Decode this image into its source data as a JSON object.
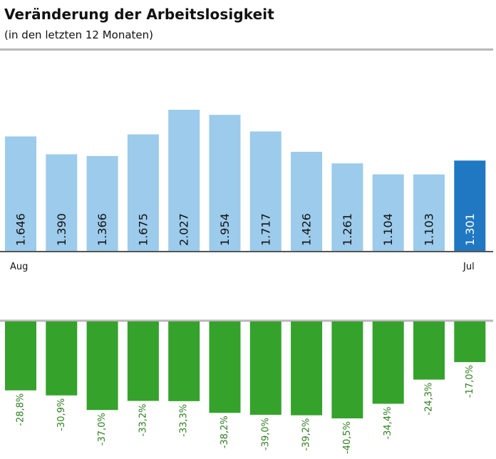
{
  "header": {
    "title": "Veränderung der Arbeitslosigkeit",
    "subtitle": "(in den letzten 12 Monaten)"
  },
  "colors": {
    "bar": "#9ccbeb",
    "bar_highlight": "#1f78c1",
    "pct_bar": "#35a22c",
    "pct_text": "#2e7d1f",
    "baseline": "#555555",
    "rule": "#b8b8b8"
  },
  "chart_data": [
    {
      "type": "bar",
      "categories": [
        "Aug",
        "",
        "",
        "",
        "",
        "",
        "",
        "",
        "",
        "",
        "",
        "Jul"
      ],
      "values": [
        1646,
        1390,
        1366,
        1675,
        2027,
        1954,
        1717,
        1426,
        1261,
        1104,
        1103,
        1301
      ],
      "value_labels": [
        "1.646",
        "1.390",
        "1.366",
        "1.675",
        "2.027",
        "1.954",
        "1.717",
        "1.426",
        "1.261",
        "1.104",
        "1.103",
        "1.301"
      ],
      "highlight_index": 11,
      "ylim": [
        0,
        2250
      ]
    },
    {
      "type": "bar",
      "categories": [
        "Aug",
        "",
        "",
        "",
        "",
        "",
        "",
        "",
        "",
        "",
        "",
        "Jul"
      ],
      "values": [
        -28.8,
        -30.9,
        -37.0,
        -33.2,
        -33.3,
        -38.2,
        -39.0,
        -39.2,
        -40.5,
        -34.4,
        -24.3,
        -17.0
      ],
      "value_labels": [
        "-28,8%",
        "-30,9%",
        "-37,0%",
        "-33,2%",
        "-33,3%",
        "-38,2%",
        "-39,0%",
        "-39,2%",
        "-40,5%",
        "-34,4%",
        "-24,3%",
        "-17,0%"
      ],
      "ylim": [
        -43,
        0
      ]
    }
  ],
  "axis": {
    "first_label": "Aug",
    "last_label": "Jul"
  }
}
